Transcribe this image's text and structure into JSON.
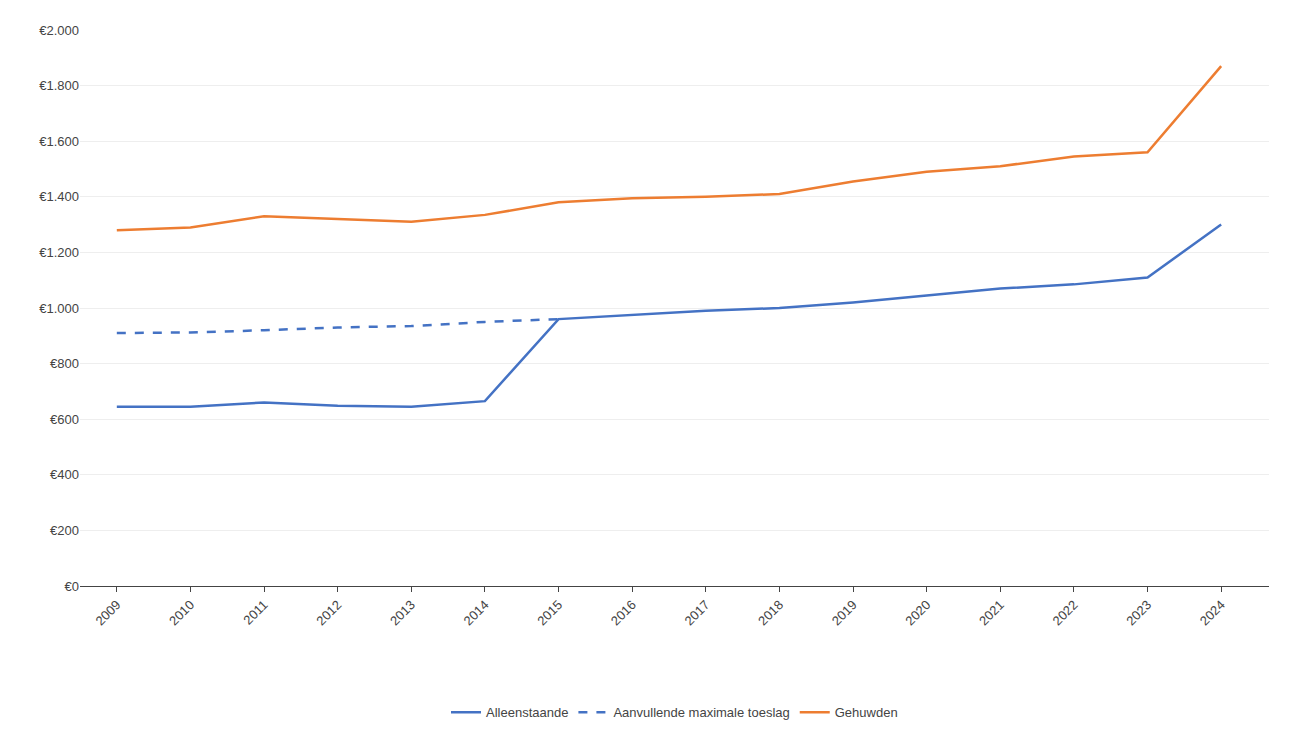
{
  "chart_data": {
    "type": "line",
    "x": [
      2009,
      2010,
      2011,
      2012,
      2013,
      2014,
      2015,
      2016,
      2017,
      2018,
      2019,
      2020,
      2021,
      2022,
      2023,
      2024
    ],
    "series": [
      {
        "name": "Alleenstaande",
        "color": "#4472C4",
        "line_style": "solid",
        "values": [
          645,
          645,
          660,
          648,
          645,
          665,
          960,
          975,
          990,
          1000,
          1020,
          1045,
          1070,
          1085,
          1110,
          1300
        ]
      },
      {
        "name": "Aanvullende maximale toeslag",
        "color": "#4472C4",
        "line_style": "dashed",
        "values": [
          910,
          912,
          920,
          930,
          935,
          950,
          960,
          null,
          null,
          null,
          null,
          null,
          null,
          null,
          null,
          null
        ]
      },
      {
        "name": "Gehuwden",
        "color": "#ED7D31",
        "line_style": "solid",
        "values": [
          1280,
          1290,
          1330,
          1320,
          1310,
          1335,
          1380,
          1395,
          1400,
          1410,
          1455,
          1490,
          1510,
          1545,
          1560,
          1870
        ]
      }
    ],
    "xlim": [
      2008.5,
      2024.65
    ],
    "xticks": [
      2009,
      2010,
      2011,
      2012,
      2013,
      2014,
      2015,
      2016,
      2017,
      2018,
      2019,
      2020,
      2021,
      2022,
      2023,
      2024
    ],
    "ylim": [
      0,
      2000
    ],
    "yticks": [
      {
        "value": 0,
        "label": "€0"
      },
      {
        "value": 200,
        "label": "€200"
      },
      {
        "value": 400,
        "label": "€400"
      },
      {
        "value": 600,
        "label": "€600"
      },
      {
        "value": 800,
        "label": "€800"
      },
      {
        "value": 1000,
        "label": "€1.000"
      },
      {
        "value": 1200,
        "label": "€1.200"
      },
      {
        "value": 1400,
        "label": "€1.400"
      },
      {
        "value": 1600,
        "label": "€1.600"
      },
      {
        "value": 1800,
        "label": "€1.800"
      },
      {
        "value": 2000,
        "label": "€2.000"
      }
    ],
    "grid": "y",
    "legend": "bottom"
  }
}
